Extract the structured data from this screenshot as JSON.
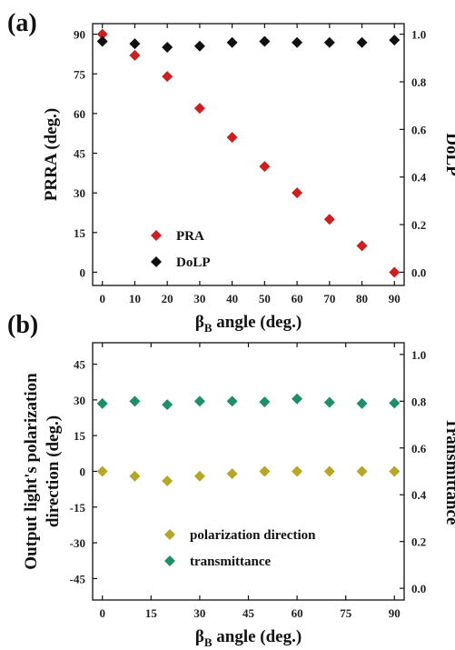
{
  "chart_data": [
    {
      "type": "scatter",
      "panel_label": "(a)",
      "xlabel": {
        "main": "β",
        "sub": "B",
        "rest": " angle (deg.)"
      },
      "ylabel_left": "PRRA (deg.)",
      "ylabel_right": "DoLP",
      "xlim": [
        -3,
        93
      ],
      "ylim_left": [
        -5,
        94
      ],
      "ylim_right": [
        -0.0556,
        1.0444
      ],
      "xticks": [
        0,
        10,
        20,
        30,
        40,
        50,
        60,
        70,
        80,
        90
      ],
      "yticks_left": [
        0,
        15,
        30,
        45,
        60,
        75,
        90
      ],
      "yticks_right": [
        0.0,
        0.2,
        0.4,
        0.6,
        0.8,
        1.0
      ],
      "legend_position": "center-left",
      "series": [
        {
          "name": "PRA",
          "axis": "left",
          "color": "#cc1f1f",
          "x": [
            0,
            10,
            20,
            30,
            40,
            50,
            60,
            70,
            80,
            90
          ],
          "y": [
            90,
            82,
            74,
            62,
            51,
            40,
            30,
            20,
            10,
            0
          ]
        },
        {
          "name": "DoLP",
          "axis": "right",
          "color": "#111111",
          "x": [
            0,
            10,
            20,
            30,
            40,
            50,
            60,
            70,
            80,
            90
          ],
          "y": [
            0.97,
            0.96,
            0.945,
            0.95,
            0.965,
            0.97,
            0.965,
            0.965,
            0.965,
            0.975
          ]
        }
      ]
    },
    {
      "type": "scatter",
      "panel_label": "(b)",
      "xlabel": {
        "main": "β",
        "sub": "B",
        "rest": " angle (deg.)"
      },
      "ylabel_left_lines": [
        "Output light's polarization",
        "direction (deg.)"
      ],
      "ylabel_right": "Transmittance",
      "xlim": [
        -3,
        93
      ],
      "ylim_left": [
        -54,
        54
      ],
      "ylim_right": [
        -0.05,
        1.05
      ],
      "xticks": [
        0,
        15,
        30,
        45,
        60,
        75,
        90
      ],
      "yticks_left": [
        -45,
        -30,
        -15,
        0,
        15,
        30,
        45
      ],
      "yticks_right": [
        0.0,
        0.2,
        0.4,
        0.6,
        0.8,
        1.0
      ],
      "legend_position": "bottom-center",
      "series": [
        {
          "name": "polarization direction",
          "axis": "left",
          "color": "#b5a728",
          "x": [
            0,
            10,
            20,
            30,
            40,
            50,
            60,
            70,
            80,
            90
          ],
          "y": [
            0,
            -2,
            -4,
            -2,
            -1,
            0,
            0,
            0,
            0,
            0
          ]
        },
        {
          "name": "transmittance",
          "axis": "right",
          "color": "#1f8f6a",
          "x": [
            0,
            10,
            20,
            30,
            40,
            50,
            60,
            70,
            80,
            90
          ],
          "y": [
            0.79,
            0.8,
            0.785,
            0.8,
            0.8,
            0.797,
            0.81,
            0.795,
            0.79,
            0.792
          ]
        }
      ]
    }
  ]
}
